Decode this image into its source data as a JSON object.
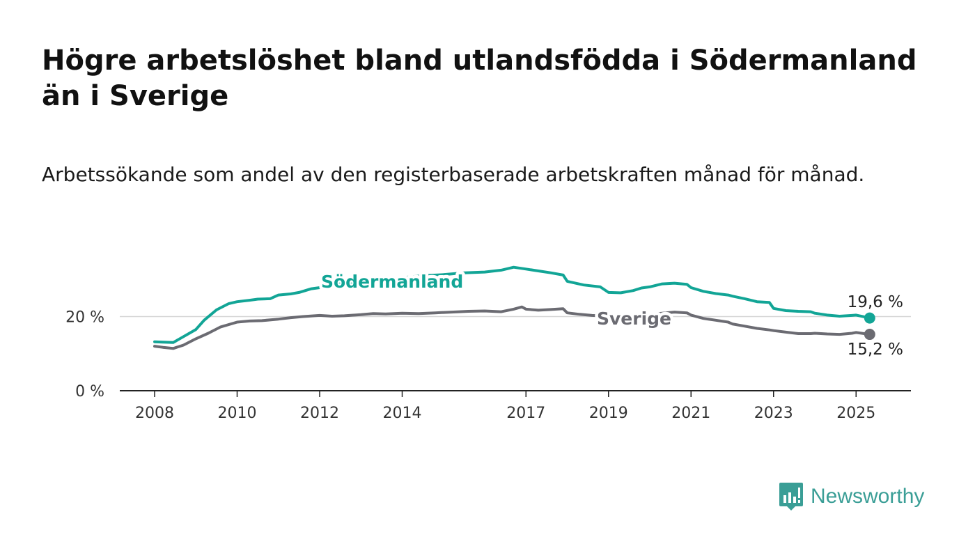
{
  "header": {
    "title": "Högre arbetslöshet bland utlandsfödda i Södermanland än i Sverige",
    "subtitle": "Arbetssökande som andel av den registerbaserade arbetskraften månad för månad."
  },
  "brand": {
    "name": "Newsworthy",
    "icon": "newsworthy-logo-icon",
    "color": "#3a9e96"
  },
  "chart_data": {
    "type": "line",
    "y_ticks": [
      "0 %",
      "20 %"
    ],
    "y_tick_values": [
      0,
      20
    ],
    "ylim": [
      0,
      34
    ],
    "x_ticks": [
      "2008",
      "2010",
      "2012",
      "2014",
      "2017",
      "2019",
      "2021",
      "2023",
      "2025"
    ],
    "x_tick_values": [
      2008,
      2010,
      2012,
      2014,
      2017,
      2019,
      2021,
      2023,
      2025
    ],
    "xlim": [
      2007.2,
      2026.2
    ],
    "grid": "y-gridline at 20 %",
    "series": [
      {
        "name": "Södermanland",
        "color": "#12a596",
        "end_label": "19,6 %",
        "x": [
          2008.0,
          2008.2,
          2008.45,
          2008.7,
          2009.0,
          2009.2,
          2009.5,
          2009.8,
          2010.0,
          2010.3,
          2010.5,
          2010.8,
          2011.0,
          2011.3,
          2011.5,
          2011.8,
          2012.0,
          2012.3,
          2012.6,
          2013.0,
          2013.5,
          2014.0,
          2014.5,
          2015.0,
          2015.5,
          2016.0,
          2016.4,
          2016.7,
          2017.0,
          2017.3,
          2017.6,
          2017.9,
          2018.0,
          2018.4,
          2018.8,
          2019.0,
          2019.3,
          2019.6,
          2019.8,
          2020.0,
          2020.3,
          2020.6,
          2020.9,
          2021.0,
          2021.3,
          2021.6,
          2021.9,
          2022.0,
          2022.3,
          2022.6,
          2022.9,
          2023.0,
          2023.3,
          2023.6,
          2023.9,
          2024.0,
          2024.3,
          2024.6,
          2024.9,
          2025.0,
          2025.33
        ],
        "y": [
          13.2,
          13.1,
          13.0,
          14.6,
          16.5,
          19.0,
          21.8,
          23.5,
          24.0,
          24.4,
          24.7,
          24.8,
          25.8,
          26.1,
          26.5,
          27.5,
          27.8,
          28.5,
          29.0,
          29.5,
          30.0,
          30.5,
          31.0,
          31.3,
          31.8,
          32.0,
          32.5,
          33.3,
          32.8,
          32.3,
          31.8,
          31.2,
          29.5,
          28.5,
          28.0,
          26.5,
          26.4,
          27.0,
          27.7,
          28.0,
          28.8,
          29.0,
          28.7,
          27.8,
          26.8,
          26.2,
          25.8,
          25.5,
          24.8,
          24.0,
          23.8,
          22.2,
          21.6,
          21.4,
          21.3,
          20.9,
          20.4,
          20.1,
          20.3,
          20.4,
          19.6
        ]
      },
      {
        "name": "Sverige",
        "color": "#6b6b72",
        "end_label": "15,2 %",
        "x": [
          2008.0,
          2008.2,
          2008.45,
          2008.7,
          2009.0,
          2009.3,
          2009.6,
          2010.0,
          2010.3,
          2010.6,
          2011.0,
          2011.3,
          2011.6,
          2012.0,
          2012.3,
          2012.6,
          2013.0,
          2013.3,
          2013.6,
          2014.0,
          2014.4,
          2014.8,
          2015.2,
          2015.6,
          2016.0,
          2016.4,
          2016.7,
          2016.9,
          2017.0,
          2017.3,
          2017.6,
          2017.9,
          2018.0,
          2018.3,
          2018.6,
          2019.0,
          2019.3,
          2019.6,
          2020.0,
          2020.3,
          2020.6,
          2020.9,
          2021.0,
          2021.3,
          2021.6,
          2021.9,
          2022.0,
          2022.3,
          2022.6,
          2022.9,
          2023.0,
          2023.3,
          2023.6,
          2023.9,
          2024.0,
          2024.3,
          2024.6,
          2024.9,
          2025.0,
          2025.33
        ],
        "y": [
          12.0,
          11.7,
          11.4,
          12.3,
          14.0,
          15.5,
          17.2,
          18.5,
          18.8,
          18.9,
          19.3,
          19.7,
          20.0,
          20.3,
          20.1,
          20.2,
          20.5,
          20.8,
          20.7,
          20.9,
          20.8,
          21.0,
          21.2,
          21.4,
          21.5,
          21.3,
          22.0,
          22.6,
          22.0,
          21.7,
          21.9,
          22.1,
          21.0,
          20.6,
          20.3,
          20.1,
          20.2,
          20.4,
          20.6,
          20.9,
          21.2,
          21.0,
          20.4,
          19.5,
          19.0,
          18.5,
          18.0,
          17.4,
          16.8,
          16.4,
          16.2,
          15.8,
          15.4,
          15.4,
          15.5,
          15.3,
          15.2,
          15.5,
          15.7,
          15.2
        ]
      }
    ]
  }
}
